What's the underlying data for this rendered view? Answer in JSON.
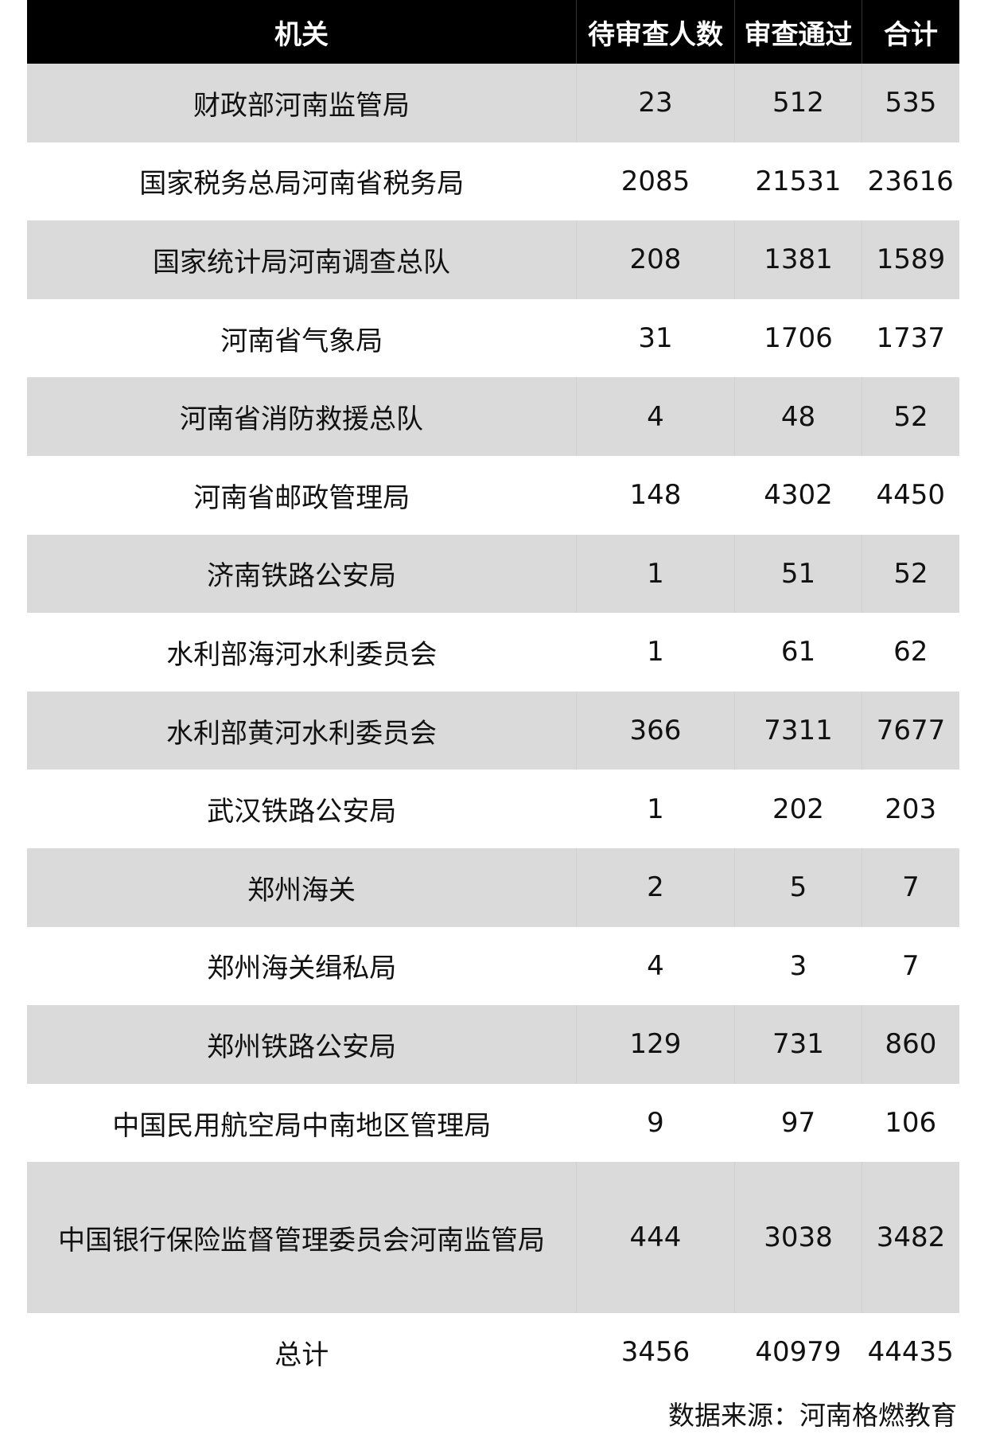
{
  "headers": [
    "机关",
    "待审查人数",
    "审查通过",
    "合计"
  ],
  "rows": [
    {
      "org": "财政部河南监管局",
      "pending": "23",
      "passed": "512",
      "total": "535"
    },
    {
      "org": "国家税务总局河南省税务局",
      "pending": "2085",
      "passed": "21531",
      "total": "23616"
    },
    {
      "org": "国家统计局河南调查总队",
      "pending": "208",
      "passed": "1381",
      "total": "1589"
    },
    {
      "org": "河南省气象局",
      "pending": "31",
      "passed": "1706",
      "total": "1737"
    },
    {
      "org": "河南省消防救援总队",
      "pending": "4",
      "passed": "48",
      "total": "52"
    },
    {
      "org": "河南省邮政管理局",
      "pending": "148",
      "passed": "4302",
      "total": "4450"
    },
    {
      "org": "济南铁路公安局",
      "pending": "1",
      "passed": "51",
      "total": "52"
    },
    {
      "org": "水利部海河水利委员会",
      "pending": "1",
      "passed": "61",
      "total": "62"
    },
    {
      "org": "水利部黄河水利委员会",
      "pending": "366",
      "passed": "7311",
      "total": "7677"
    },
    {
      "org": "武汉铁路公安局",
      "pending": "1",
      "passed": "202",
      "total": "203"
    },
    {
      "org": "郑州海关",
      "pending": "2",
      "passed": "5",
      "total": "7"
    },
    {
      "org": "郑州海关缉私局",
      "pending": "4",
      "passed": "3",
      "total": "7"
    },
    {
      "org": "郑州铁路公安局",
      "pending": "129",
      "passed": "731",
      "total": "860"
    },
    {
      "org": "中国民用航空局中南地区管理局",
      "pending": "9",
      "passed": "97",
      "total": "106"
    },
    {
      "org": "中国银行保险监督管理委员会河南监管局",
      "pending": "444",
      "passed": "3038",
      "total": "3482"
    }
  ],
  "summary": {
    "label": "总计",
    "pending": "3456",
    "passed": "40979",
    "total": "44435"
  },
  "source": "数据来源：河南格燃教育",
  "colors": {
    "header_bg": "#000000",
    "stripe": "#dadada"
  }
}
